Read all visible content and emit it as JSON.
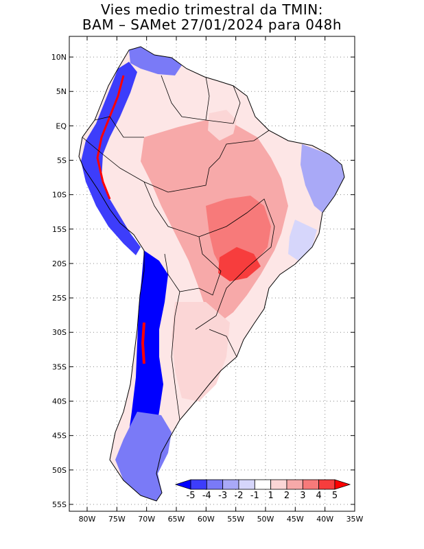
{
  "header": {
    "line1": "Vies medio trimestral da TMIN:",
    "line2": "BAM – SAMet 27/01/2024  para 048h"
  },
  "map": {
    "lat_range": [
      -56,
      13
    ],
    "lon_range": [
      -83,
      -35
    ],
    "lat_ticks": [
      {
        "value": 10,
        "label": "10N"
      },
      {
        "value": 5,
        "label": "5N"
      },
      {
        "value": 0,
        "label": "EQ"
      },
      {
        "value": -5,
        "label": "5S"
      },
      {
        "value": -10,
        "label": "10S"
      },
      {
        "value": -15,
        "label": "15S"
      },
      {
        "value": -20,
        "label": "20S"
      },
      {
        "value": -25,
        "label": "25S"
      },
      {
        "value": -30,
        "label": "30S"
      },
      {
        "value": -35,
        "label": "35S"
      },
      {
        "value": -40,
        "label": "40S"
      },
      {
        "value": -45,
        "label": "45S"
      },
      {
        "value": -50,
        "label": "50S"
      },
      {
        "value": -55,
        "label": "55S"
      }
    ],
    "lon_ticks": [
      {
        "value": -80,
        "label": "80W"
      },
      {
        "value": -75,
        "label": "75W"
      },
      {
        "value": -70,
        "label": "70W"
      },
      {
        "value": -65,
        "label": "65W"
      },
      {
        "value": -60,
        "label": "60W"
      },
      {
        "value": -55,
        "label": "55W"
      },
      {
        "value": -50,
        "label": "50W"
      },
      {
        "value": -45,
        "label": "45W"
      },
      {
        "value": -40,
        "label": "40W"
      },
      {
        "value": -35,
        "label": "35W"
      }
    ],
    "grid": true,
    "grid_style": "dotted"
  },
  "colorbar": {
    "labels": [
      "-5",
      "-4",
      "-3",
      "-2",
      "-1",
      "1",
      "2",
      "3",
      "4",
      "5"
    ],
    "colors": [
      "#0000ff",
      "#3d3dfb",
      "#7a7af7",
      "#a9a9f7",
      "#d6d6fb",
      "#ffffff",
      "#fbd6d6",
      "#f7a9a9",
      "#f77a7a",
      "#f73d3d",
      "#ff0000"
    ]
  }
}
